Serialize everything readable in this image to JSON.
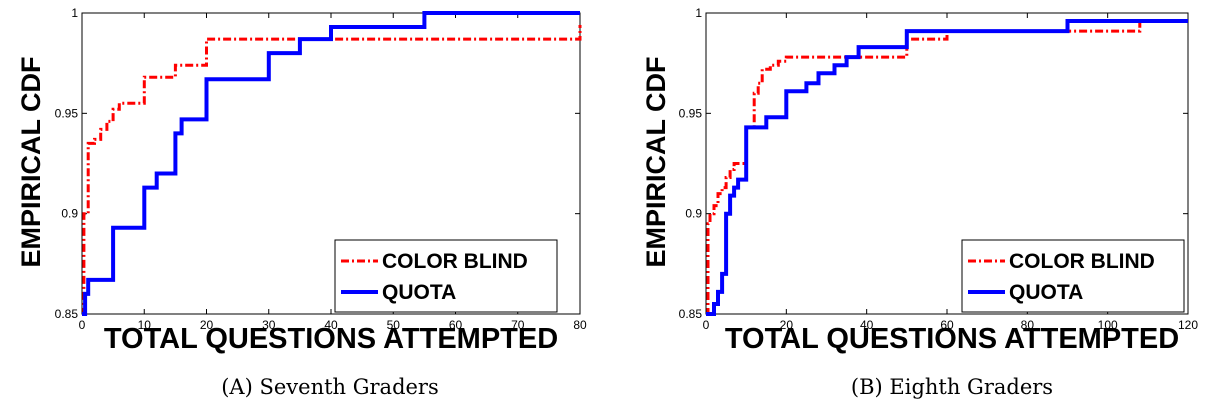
{
  "chart_data": [
    {
      "type": "line",
      "caption": "(A) Seventh Graders",
      "xlabel": "TOTAL QUESTIONS ATTEMPTED",
      "ylabel": "EMPIRICAL CDF",
      "xlim": [
        0,
        80
      ],
      "ylim": [
        0.85,
        1
      ],
      "xticks": [
        0,
        10,
        20,
        30,
        40,
        50,
        60,
        70,
        80
      ],
      "yticks": [
        0.85,
        0.9,
        0.95,
        1
      ],
      "ytick_labels": [
        "0.85",
        "0.9",
        "0.95",
        "1"
      ],
      "grid": false,
      "legend_position": "bottom-right",
      "series": [
        {
          "name": "COLOR BLIND",
          "color": "#ff0000",
          "style": "dash-dot",
          "x": [
            0,
            0.3,
            1,
            2,
            3,
            4,
            5,
            6,
            8,
            10,
            11,
            12,
            14,
            15,
            16,
            18,
            20,
            30,
            40,
            80
          ],
          "y": [
            0.85,
            0.9,
            0.935,
            0.937,
            0.942,
            0.946,
            0.952,
            0.955,
            0.955,
            0.968,
            0.968,
            0.968,
            0.968,
            0.974,
            0.974,
            0.974,
            0.987,
            0.987,
            0.987,
            0.994
          ]
        },
        {
          "name": "QUOTA",
          "color": "#0000ff",
          "style": "solid",
          "x": [
            0,
            0.5,
            1,
            5,
            10,
            11,
            12,
            15,
            16,
            20,
            30,
            35,
            40,
            55,
            80
          ],
          "y": [
            0.85,
            0.86,
            0.867,
            0.893,
            0.913,
            0.913,
            0.92,
            0.94,
            0.947,
            0.967,
            0.98,
            0.987,
            0.993,
            1.0,
            1.0
          ]
        }
      ]
    },
    {
      "type": "line",
      "caption": "(B) Eighth Graders",
      "xlabel": "TOTAL QUESTIONS ATTEMPTED",
      "ylabel": "EMPIRICAL CDF",
      "xlim": [
        0,
        120
      ],
      "ylim": [
        0.85,
        1
      ],
      "xticks": [
        0,
        20,
        40,
        60,
        80,
        100,
        120
      ],
      "yticks": [
        0.85,
        0.9,
        0.95,
        1
      ],
      "ytick_labels": [
        "0.85",
        "0.9",
        "0.95",
        "1"
      ],
      "grid": false,
      "legend_position": "bottom-right",
      "series": [
        {
          "name": "COLOR BLIND",
          "color": "#ff0000",
          "style": "dash-dot",
          "x": [
            0,
            0.5,
            1,
            2,
            3,
            4,
            5,
            6,
            7,
            8,
            10,
            12,
            13,
            14,
            16,
            18,
            20,
            30,
            40,
            50,
            60,
            70,
            80,
            90,
            100,
            108,
            120
          ],
          "y": [
            0.85,
            0.895,
            0.9,
            0.904,
            0.91,
            0.913,
            0.918,
            0.922,
            0.925,
            0.925,
            0.943,
            0.96,
            0.965,
            0.972,
            0.974,
            0.976,
            0.978,
            0.978,
            0.978,
            0.987,
            0.991,
            0.991,
            0.991,
            0.991,
            0.991,
            0.996,
            0.996
          ]
        },
        {
          "name": "QUOTA",
          "color": "#0000ff",
          "style": "solid",
          "x": [
            0,
            2,
            3,
            4,
            5,
            6,
            7,
            8,
            10,
            15,
            20,
            25,
            28,
            32,
            35,
            38,
            40,
            50,
            60,
            90,
            120
          ],
          "y": [
            0.85,
            0.855,
            0.861,
            0.87,
            0.9,
            0.909,
            0.913,
            0.917,
            0.943,
            0.948,
            0.961,
            0.965,
            0.97,
            0.974,
            0.978,
            0.983,
            0.983,
            0.991,
            0.991,
            0.996,
            0.996
          ]
        }
      ]
    }
  ]
}
